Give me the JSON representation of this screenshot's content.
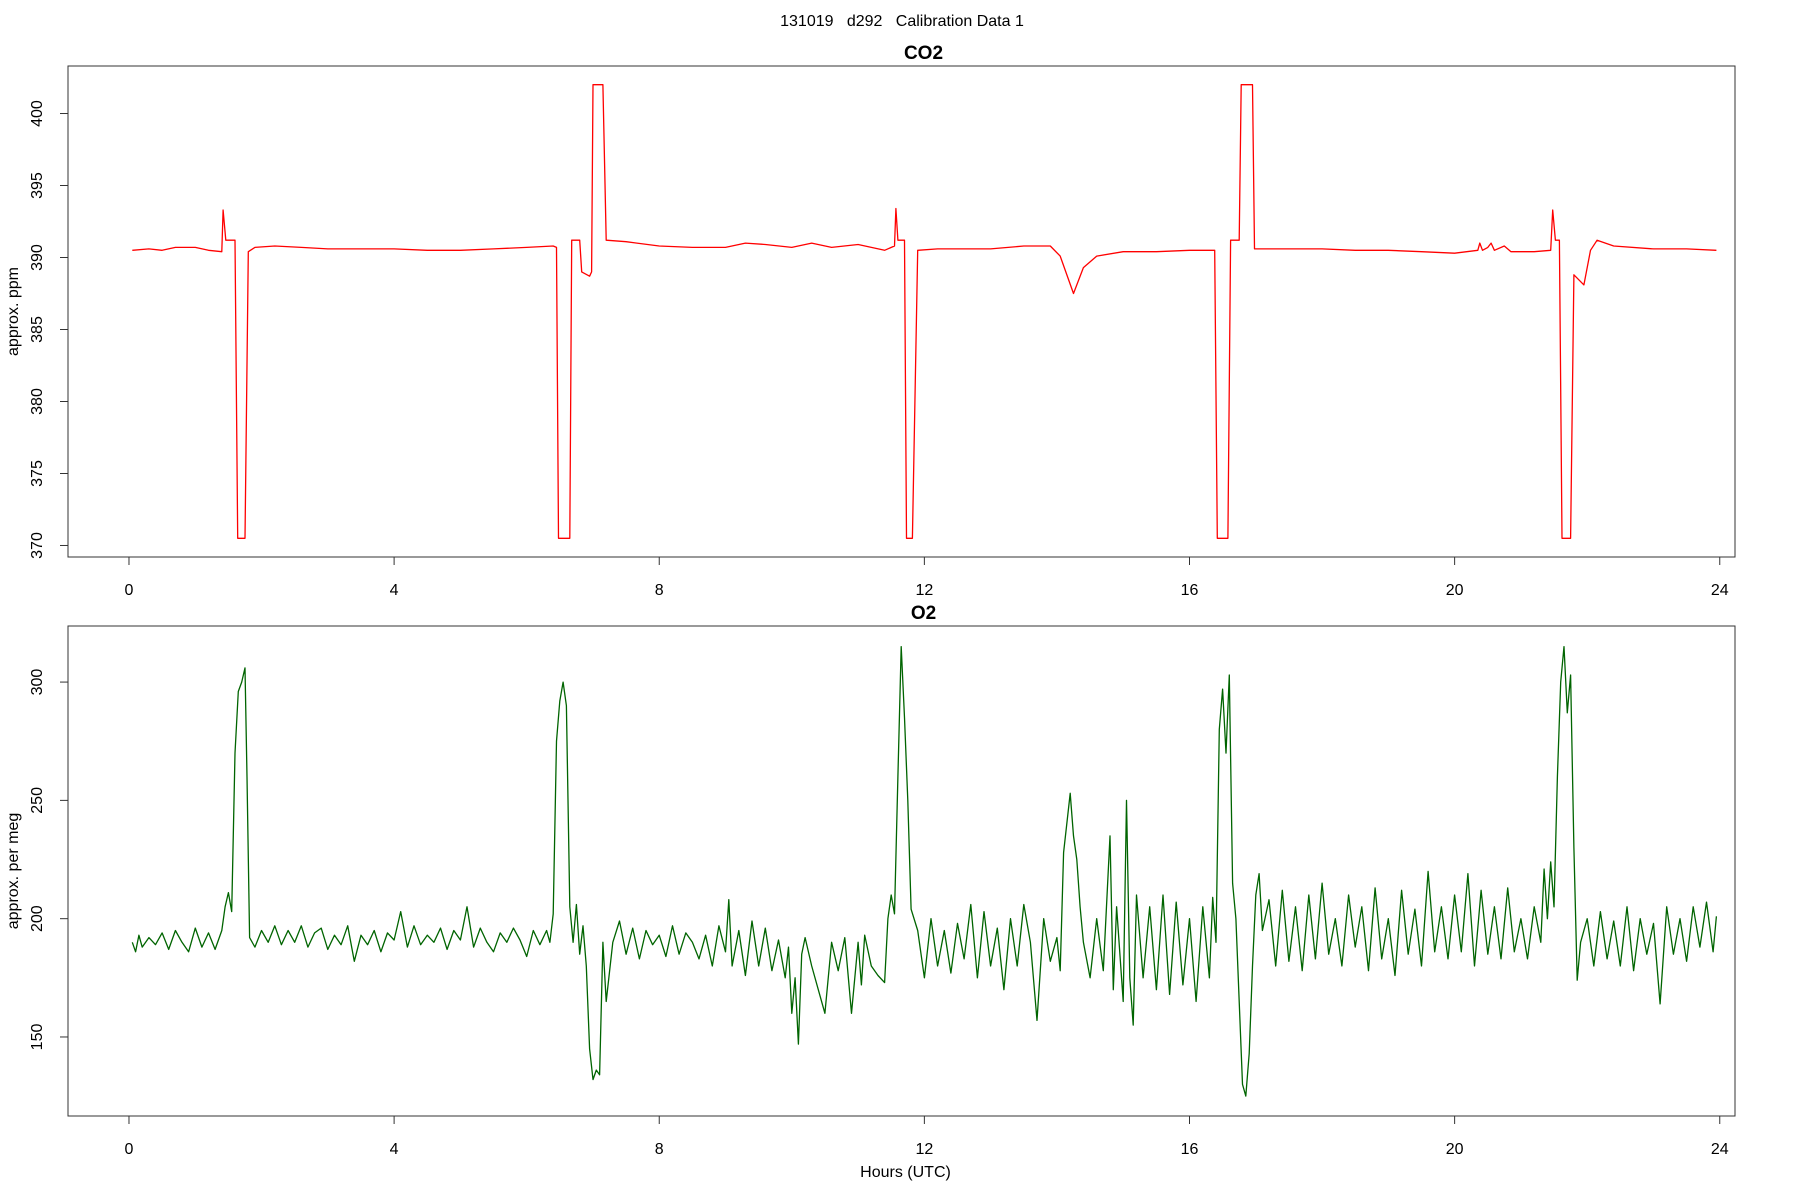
{
  "title": "131019   d292   Calibration Data 1",
  "chart_data": [
    {
      "type": "line",
      "title": "CO2",
      "y_label": "approx. ppm",
      "color": "#ff0000",
      "xlim": [
        -0.92,
        24.23
      ],
      "xticks": [
        0,
        4,
        8,
        12,
        16,
        20,
        24
      ],
      "ylim": [
        369.2,
        403.3
      ],
      "yticks": [
        370,
        375,
        380,
        385,
        390,
        395,
        400
      ],
      "x": [
        0.05,
        0.3,
        0.5,
        0.7,
        1.0,
        1.2,
        1.4,
        1.42,
        1.46,
        1.6,
        1.64,
        1.75,
        1.8,
        1.9,
        2.2,
        2.6,
        3.0,
        3.5,
        4.0,
        4.5,
        5.0,
        5.5,
        6.0,
        6.4,
        6.45,
        6.48,
        6.65,
        6.68,
        6.8,
        6.83,
        6.95,
        6.98,
        7.0,
        7.15,
        7.2,
        7.5,
        8.0,
        8.5,
        9.0,
        9.3,
        9.6,
        10.0,
        10.3,
        10.6,
        11.0,
        11.4,
        11.55,
        11.57,
        11.6,
        11.7,
        11.73,
        11.82,
        11.9,
        12.2,
        12.6,
        13.0,
        13.5,
        13.9,
        14.05,
        14.25,
        14.4,
        14.6,
        15.0,
        15.5,
        16.0,
        16.38,
        16.42,
        16.58,
        16.62,
        16.75,
        16.78,
        16.95,
        16.98,
        17.5,
        18.0,
        18.5,
        19.0,
        19.5,
        20.0,
        20.35,
        20.38,
        20.42,
        20.5,
        20.55,
        20.6,
        20.75,
        20.85,
        21.2,
        21.45,
        21.48,
        21.52,
        21.58,
        21.62,
        21.75,
        21.8,
        21.95,
        22.05,
        22.15,
        22.4,
        23.0,
        23.5,
        23.95
      ],
      "values": [
        390.5,
        390.6,
        390.5,
        390.7,
        390.7,
        390.5,
        390.4,
        393.3,
        391.2,
        391.2,
        370.5,
        370.5,
        390.4,
        390.7,
        390.8,
        390.7,
        390.6,
        390.6,
        390.6,
        390.5,
        390.5,
        390.6,
        390.7,
        390.8,
        390.7,
        370.5,
        370.5,
        391.2,
        391.2,
        389,
        388.7,
        389,
        402,
        402,
        391.2,
        391.1,
        390.8,
        390.7,
        390.7,
        391,
        390.9,
        390.7,
        391,
        390.7,
        390.9,
        390.5,
        390.8,
        393.4,
        391.2,
        391.2,
        370.5,
        370.5,
        390.5,
        390.6,
        390.6,
        390.6,
        390.8,
        390.8,
        390.1,
        387.5,
        389.3,
        390.1,
        390.4,
        390.4,
        390.5,
        390.5,
        370.5,
        370.5,
        391.2,
        391.2,
        402,
        402,
        390.6,
        390.6,
        390.6,
        390.5,
        390.5,
        390.4,
        390.3,
        390.5,
        391,
        390.5,
        390.7,
        391,
        390.5,
        390.8,
        390.4,
        390.4,
        390.5,
        393.3,
        391.2,
        391.2,
        370.5,
        370.5,
        388.8,
        388.1,
        390.5,
        391.2,
        390.8,
        390.6,
        390.6,
        390.5
      ]
    },
    {
      "type": "line",
      "title": "O2",
      "y_label": "approx. per meg",
      "x_label": "Hours (UTC)",
      "color": "#006400",
      "xlim": [
        -0.92,
        24.23
      ],
      "xticks": [
        0,
        4,
        8,
        12,
        16,
        20,
        24
      ],
      "ylim": [
        116.6,
        323.7
      ],
      "yticks": [
        150,
        200,
        250,
        300
      ],
      "x": [
        0.05,
        0.1,
        0.15,
        0.2,
        0.3,
        0.4,
        0.5,
        0.6,
        0.7,
        0.8,
        0.9,
        1.0,
        1.1,
        1.2,
        1.3,
        1.4,
        1.45,
        1.5,
        1.55,
        1.6,
        1.65,
        1.7,
        1.75,
        1.78,
        1.82,
        1.9,
        2.0,
        2.1,
        2.2,
        2.3,
        2.4,
        2.5,
        2.6,
        2.7,
        2.8,
        2.9,
        3.0,
        3.1,
        3.2,
        3.3,
        3.4,
        3.5,
        3.6,
        3.7,
        3.8,
        3.9,
        4.0,
        4.1,
        4.2,
        4.3,
        4.4,
        4.5,
        4.6,
        4.7,
        4.8,
        4.9,
        5.0,
        5.1,
        5.2,
        5.3,
        5.4,
        5.5,
        5.6,
        5.7,
        5.8,
        5.9,
        6.0,
        6.1,
        6.2,
        6.3,
        6.35,
        6.4,
        6.45,
        6.5,
        6.55,
        6.6,
        6.65,
        6.7,
        6.75,
        6.8,
        6.85,
        6.9,
        6.95,
        7.0,
        7.05,
        7.1,
        7.15,
        7.2,
        7.3,
        7.4,
        7.5,
        7.6,
        7.7,
        7.8,
        7.9,
        8.0,
        8.1,
        8.2,
        8.3,
        8.4,
        8.5,
        8.6,
        8.7,
        8.8,
        8.9,
        9.0,
        9.05,
        9.1,
        9.2,
        9.3,
        9.4,
        9.5,
        9.6,
        9.7,
        9.8,
        9.9,
        9.95,
        10.0,
        10.05,
        10.1,
        10.15,
        10.2,
        10.3,
        10.4,
        10.5,
        10.6,
        10.7,
        10.8,
        10.9,
        11.0,
        11.05,
        11.1,
        11.2,
        11.3,
        11.4,
        11.45,
        11.5,
        11.55,
        11.6,
        11.65,
        11.7,
        11.75,
        11.8,
        11.9,
        12.0,
        12.1,
        12.2,
        12.3,
        12.4,
        12.5,
        12.6,
        12.7,
        12.8,
        12.9,
        13.0,
        13.1,
        13.2,
        13.3,
        13.4,
        13.5,
        13.6,
        13.7,
        13.8,
        13.9,
        14.0,
        14.05,
        14.1,
        14.2,
        14.25,
        14.3,
        14.35,
        14.4,
        14.5,
        14.6,
        14.7,
        14.8,
        14.85,
        14.9,
        15.0,
        15.05,
        15.1,
        15.15,
        15.2,
        15.3,
        15.4,
        15.5,
        15.6,
        15.7,
        15.8,
        15.9,
        16.0,
        16.1,
        16.2,
        16.3,
        16.35,
        16.4,
        16.45,
        16.5,
        16.55,
        16.6,
        16.65,
        16.7,
        16.75,
        16.8,
        16.85,
        16.9,
        16.95,
        17.0,
        17.05,
        17.1,
        17.2,
        17.3,
        17.4,
        17.5,
        17.6,
        17.7,
        17.8,
        17.9,
        18.0,
        18.1,
        18.2,
        18.3,
        18.4,
        18.5,
        18.6,
        18.7,
        18.8,
        18.9,
        19.0,
        19.1,
        19.2,
        19.3,
        19.4,
        19.5,
        19.6,
        19.7,
        19.8,
        19.9,
        20.0,
        20.1,
        20.2,
        20.3,
        20.4,
        20.5,
        20.6,
        20.7,
        20.8,
        20.9,
        21.0,
        21.1,
        21.2,
        21.3,
        21.35,
        21.4,
        21.45,
        21.5,
        21.55,
        21.6,
        21.65,
        21.7,
        21.75,
        21.8,
        21.85,
        21.9,
        22.0,
        22.1,
        22.2,
        22.3,
        22.4,
        22.5,
        22.6,
        22.7,
        22.8,
        22.9,
        23.0,
        23.1,
        23.2,
        23.3,
        23.4,
        23.5,
        23.6,
        23.7,
        23.8,
        23.9,
        23.95
      ],
      "values": [
        190,
        186,
        193,
        188,
        192,
        189,
        194,
        187,
        195,
        190,
        186,
        196,
        188,
        194,
        187,
        195,
        205,
        211,
        203,
        270,
        296,
        300,
        306,
        260,
        192,
        188,
        195,
        190,
        197,
        189,
        195,
        190,
        197,
        188,
        194,
        196,
        187,
        193,
        189,
        197,
        182,
        193,
        189,
        195,
        186,
        194,
        191,
        203,
        188,
        197,
        189,
        193,
        190,
        196,
        187,
        195,
        191,
        205,
        188,
        196,
        190,
        186,
        194,
        190,
        196,
        191,
        184,
        195,
        189,
        195,
        190,
        202,
        275,
        292,
        300,
        290,
        205,
        190,
        206,
        185,
        197,
        180,
        145,
        132,
        136,
        134,
        190,
        165,
        190,
        199,
        185,
        196,
        183,
        195,
        189,
        193,
        184,
        197,
        185,
        194,
        190,
        183,
        193,
        180,
        197,
        186,
        208,
        180,
        195,
        176,
        199,
        180,
        196,
        178,
        191,
        175,
        188,
        160,
        175,
        147,
        185,
        192,
        180,
        170,
        160,
        190,
        178,
        192,
        160,
        190,
        172,
        193,
        180,
        176,
        173,
        200,
        210,
        202,
        260,
        315,
        285,
        250,
        204,
        195,
        175,
        200,
        180,
        195,
        177,
        198,
        183,
        206,
        175,
        203,
        180,
        196,
        170,
        200,
        180,
        206,
        190,
        157,
        200,
        182,
        192,
        178,
        228,
        253,
        235,
        225,
        205,
        190,
        175,
        200,
        178,
        235,
        170,
        205,
        165,
        250,
        175,
        155,
        210,
        175,
        205,
        170,
        210,
        168,
        207,
        172,
        200,
        165,
        205,
        175,
        209,
        190,
        280,
        297,
        270,
        303,
        215,
        200,
        165,
        130,
        125,
        143,
        180,
        210,
        219,
        195,
        208,
        180,
        212,
        182,
        205,
        178,
        210,
        183,
        215,
        185,
        200,
        180,
        210,
        188,
        205,
        178,
        213,
        183,
        200,
        176,
        212,
        185,
        204,
        180,
        220,
        186,
        205,
        183,
        210,
        186,
        219,
        180,
        212,
        185,
        205,
        183,
        213,
        186,
        200,
        183,
        205,
        190,
        221,
        200,
        224,
        205,
        260,
        300,
        315,
        287,
        303,
        230,
        174,
        190,
        200,
        180,
        203,
        183,
        199,
        180,
        205,
        178,
        200,
        185,
        198,
        164,
        205,
        185,
        200,
        182,
        205,
        188,
        207,
        186,
        201
      ]
    }
  ]
}
